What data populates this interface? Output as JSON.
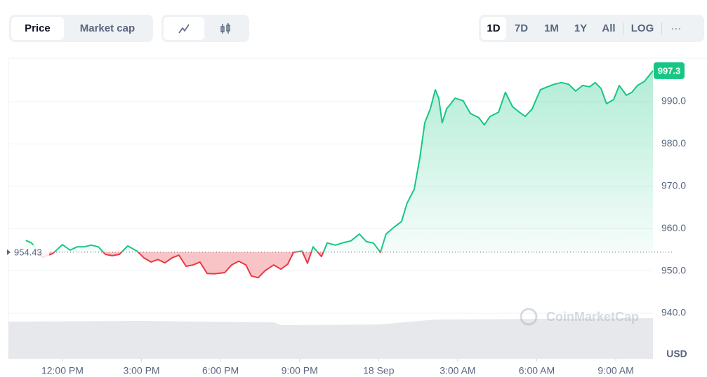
{
  "controls": {
    "tabs": [
      "Price",
      "Market cap"
    ],
    "ranges": [
      "1D",
      "7D",
      "1M",
      "1Y",
      "All",
      "LOG"
    ],
    "more": "···"
  },
  "chart_data": {
    "type": "line",
    "y_label": "USD",
    "watermark": "CoinMarketCap",
    "x": [
      -1.39,
      -1.17,
      -0.77,
      -0.37,
      0,
      0.29,
      0.56,
      0.83,
      1.09,
      1.36,
      1.63,
      1.89,
      2.16,
      2.48,
      2.83,
      3.09,
      3.36,
      3.62,
      3.89,
      4.16,
      4.42,
      4.69,
      4.96,
      5.22,
      5.49,
      5.76,
      6.16,
      6.42,
      6.69,
      6.96,
      7.17,
      7.43,
      7.7,
      8.02,
      8.29,
      8.55,
      8.77,
      9.09,
      9.3,
      9.51,
      9.83,
      10.05,
      10.36,
      10.68,
      10.95,
      11.27,
      11.54,
      11.8,
      12.07,
      12.28,
      12.6,
      12.87,
      13.08,
      13.35,
      13.56,
      13.75,
      13.96,
      14.15,
      14.28,
      14.41,
      14.58,
      14.74,
      14.9,
      15.21,
      15.48,
      15.8,
      16.01,
      16.23,
      16.55,
      16.81,
      17.08,
      17.34,
      17.56,
      17.82,
      18.14,
      18.41,
      18.67,
      18.94,
      19.21,
      19.48,
      19.74,
      20.01,
      20.22,
      20.44,
      20.65,
      20.92,
      21.13,
      21.4,
      21.61,
      21.82,
      22.09,
      22.41
    ],
    "series": [
      {
        "name": "Price",
        "values": [
          957.2,
          956.6,
          953.2,
          954.1,
          956.2,
          954.9,
          955.7,
          955.7,
          956.1,
          955.7,
          953.9,
          953.6,
          953.9,
          955.9,
          954.7,
          953.1,
          952.1,
          952.7,
          951.9,
          953.1,
          953.7,
          951.1,
          951.4,
          952.1,
          949.4,
          949.3,
          949.6,
          951.4,
          952.3,
          951.4,
          948.8,
          948.4,
          950.1,
          951.4,
          950.4,
          951.6,
          954.4,
          954.7,
          951.8,
          955.7,
          953.4,
          956.6,
          956.1,
          956.7,
          957.1,
          958.7,
          956.9,
          956.6,
          954.4,
          958.7,
          960.4,
          961.7,
          966.0,
          969.3,
          976.6,
          985.0,
          988.3,
          992.8,
          990.8,
          985.0,
          988.3,
          989.5,
          990.8,
          990.2,
          987.2,
          986.2,
          984.5,
          986.5,
          987.5,
          992.2,
          988.8,
          987.5,
          986.5,
          988.2,
          992.8,
          993.5,
          994.1,
          994.5,
          994.1,
          992.5,
          993.8,
          993.5,
          994.5,
          993.1,
          989.5,
          990.5,
          993.8,
          991.5,
          992.2,
          993.8,
          994.8,
          997.3
        ]
      }
    ],
    "baseline": 954.43,
    "up_color": "#16c784",
    "down_color": "#ea3943",
    "xlim": [
      -2.05,
      22.41
    ],
    "ylim": [
      929.24,
      1000.26
    ],
    "xticks": [
      {
        "value": 0,
        "label": "12:00 PM"
      },
      {
        "value": 3,
        "label": "3:00 PM"
      },
      {
        "value": 6,
        "label": "6:00 PM"
      },
      {
        "value": 9,
        "label": "9:00 PM"
      },
      {
        "value": 12,
        "label": "18 Sep"
      },
      {
        "value": 15,
        "label": "3:00 AM"
      },
      {
        "value": 18,
        "label": "6:00 AM"
      },
      {
        "value": 21,
        "label": "9:00 AM"
      }
    ],
    "yticks": [
      {
        "value": 940,
        "label": "940.0"
      },
      {
        "value": 950,
        "label": "950.0"
      },
      {
        "value": 960,
        "label": "960.0"
      },
      {
        "value": 970,
        "label": "970.0"
      },
      {
        "value": 980,
        "label": "980.0"
      },
      {
        "value": 990,
        "label": "990.0"
      }
    ],
    "grid": true
  }
}
